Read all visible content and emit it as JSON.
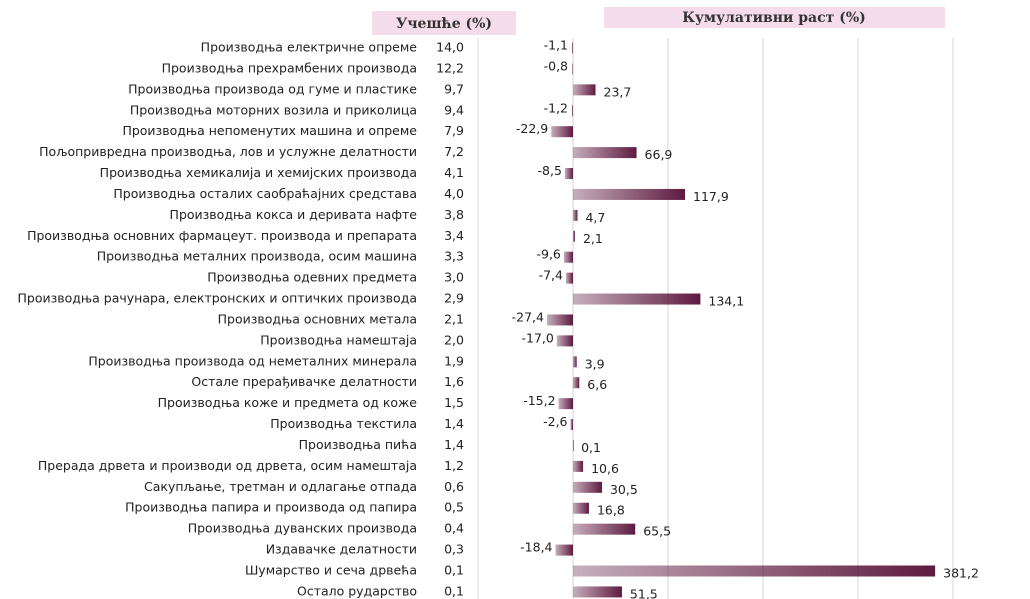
{
  "chart_data": {
    "type": "bar",
    "orientation": "horizontal",
    "categories": [
      "Производња електричне опреме",
      "Производња прехрамбених производа",
      "Производња производа од гуме и пластике",
      "Производња моторних возила и приколица",
      "Производња непоменутих машина и опреме",
      "Пољопривредна производња, лов и услужне делатности",
      "Производња хемикалија и хемијских производа",
      "Производња осталих саобраћајних средстава",
      "Производња кокса и деривата нафте",
      "Производња основних фармацеут. производа и препарата",
      "Производња металних производа, осим машина",
      "Производња одевних предмета",
      "Производња рачунара, електронских и оптичких производа",
      "Производња основних метала",
      "Производња намештаја",
      "Производња производа од неметалних минерала",
      "Остале прерађивачке делатности",
      "Производња коже и предмета од коже",
      "Производња текстила",
      "Производња пића",
      "Прерада дрвета и производи од дрвета, осим намештаја",
      "Сакупљање, третман и одлагање отпада",
      "Производња папира и производа од папира",
      "Производња дуванских производа",
      "Издавачке делатности",
      "Шумарство и сеча дрвећа",
      "Остало рударство"
    ],
    "share": {
      "name": "Учешће (%)",
      "values": [
        14.0,
        12.2,
        9.7,
        9.4,
        7.9,
        7.2,
        4.1,
        4.0,
        3.8,
        3.4,
        3.3,
        3.0,
        2.9,
        2.1,
        2.0,
        1.9,
        1.6,
        1.5,
        1.4,
        1.4,
        1.2,
        0.6,
        0.5,
        0.4,
        0.3,
        0.1,
        0.1
      ],
      "value_labels": [
        "14,0",
        "12,2",
        "9,7",
        "9,4",
        "7,9",
        "7,2",
        "4,1",
        "4,0",
        "3,8",
        "3,4",
        "3,3",
        "3,0",
        "2,9",
        "2,1",
        "2,0",
        "1,9",
        "1,6",
        "1,5",
        "1,4",
        "1,4",
        "1,2",
        "0,6",
        "0,5",
        "0,4",
        "0,3",
        "0,1",
        "0,1"
      ]
    },
    "series": [
      {
        "name": "Кумулативни раст (%)",
        "color": "#5e1a40",
        "values": [
          -1.1,
          -0.8,
          23.7,
          -1.2,
          -22.9,
          66.9,
          -8.5,
          117.9,
          4.7,
          2.1,
          -9.6,
          -7.4,
          134.1,
          -27.4,
          -17.0,
          3.9,
          6.6,
          -15.2,
          -2.6,
          0.1,
          10.6,
          30.5,
          16.8,
          65.5,
          -18.4,
          381.2,
          51.5
        ],
        "value_labels": [
          "-1,1",
          "-0,8",
          "23,7",
          "-1,2",
          "-22,9",
          "66,9",
          "-8,5",
          "117,9",
          "4,7",
          "2,1",
          "-9,6",
          "-7,4",
          "134,1",
          "-27,4",
          "-17,0",
          "3,9",
          "6,6",
          "-15,2",
          "-2,6",
          "0,1",
          "10,6",
          "30,5",
          "16,8",
          "65,5",
          "-18,4",
          "381,2",
          "51,5"
        ]
      }
    ],
    "xlim": [
      -100,
      400
    ],
    "xticks": [
      -100,
      0,
      100,
      200,
      300,
      400
    ],
    "grid": true
  }
}
